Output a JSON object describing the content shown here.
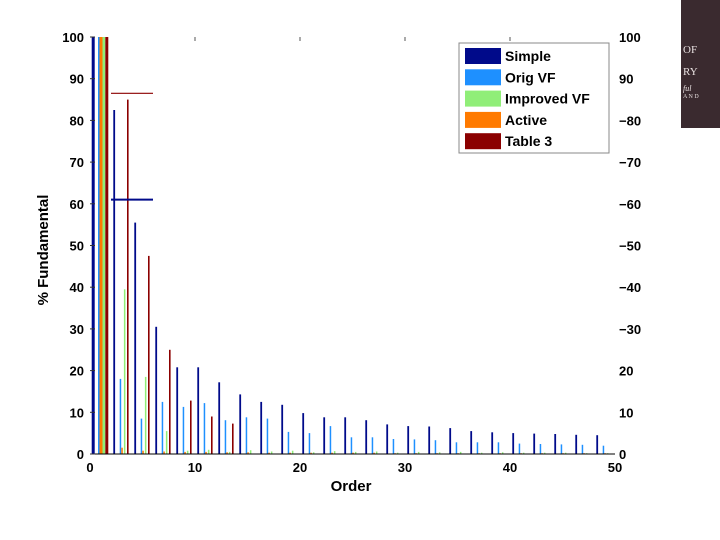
{
  "logo": {
    "line1": "OF",
    "line2": "RY",
    "line3": "ful",
    "line4": "A N D"
  },
  "colors": {
    "Simple": "#000a8a",
    "Orig VF": "#1e90ff",
    "Improved VF": "#90ee78",
    "Active": "#ff7a00",
    "Table 3": "#8b0000"
  },
  "chart_data": {
    "type": "bar",
    "title": "",
    "xlabel": "Order",
    "ylabel": "% Fundamental",
    "xlim": [
      0,
      50
    ],
    "ylim": [
      0,
      100
    ],
    "xticks": [
      0,
      10,
      20,
      30,
      40,
      50
    ],
    "yticks": [
      0,
      10,
      20,
      30,
      40,
      50,
      60,
      70,
      80,
      90,
      100
    ],
    "legend_position": "top-right",
    "series": [
      {
        "name": "Simple",
        "x": [
          1,
          3,
          5,
          7,
          9,
          11,
          13,
          15,
          17,
          19,
          21,
          23,
          25,
          27,
          29,
          31,
          33,
          35,
          37,
          39,
          41,
          43,
          45,
          47,
          49
        ],
        "values": [
          100,
          82.5,
          55.5,
          30.5,
          20.8,
          20.8,
          17.2,
          14.3,
          12.5,
          11.8,
          9.8,
          8.8,
          8.8,
          8.1,
          7.1,
          6.7,
          6.6,
          6.2,
          5.5,
          5.2,
          5.0,
          4.9,
          4.8,
          4.6,
          4.5
        ]
      },
      {
        "name": "Orig VF",
        "x": [
          1,
          3,
          5,
          7,
          9,
          11,
          13,
          15,
          17,
          19,
          21,
          23,
          25,
          27,
          29,
          31,
          33,
          35,
          37,
          39,
          41,
          43,
          45,
          47,
          49
        ],
        "values": [
          100,
          18,
          8.5,
          12.5,
          11.3,
          12.2,
          8.1,
          8.8,
          8.5,
          5.3,
          5.0,
          6.7,
          4.0,
          4.0,
          3.6,
          3.5,
          3.3,
          2.8,
          2.8,
          2.8,
          2.5,
          2.4,
          2.3,
          2.2,
          2.0
        ]
      },
      {
        "name": "Improved VF",
        "x": [
          1,
          3,
          5,
          7,
          9,
          11,
          13,
          15,
          17,
          19,
          21,
          23,
          25,
          27,
          29,
          31,
          33,
          35,
          37,
          39,
          41,
          43,
          45,
          47,
          49
        ],
        "values": [
          100,
          39.5,
          18.5,
          5.5,
          0.8,
          1.0,
          0.5,
          0.9,
          0.6,
          0.8,
          0.4,
          0.7,
          0.5,
          0.6,
          0.3,
          0.5,
          0.4,
          0.5,
          0.3,
          0.4,
          0.3,
          0.3,
          0.3,
          0.2,
          0.2
        ]
      },
      {
        "name": "Active",
        "x": [
          1,
          3,
          5,
          7,
          9,
          11,
          13,
          15,
          17,
          19,
          21,
          23,
          25,
          27,
          29,
          31,
          33,
          35,
          37,
          39,
          41,
          43,
          45,
          47,
          49
        ],
        "values": [
          100,
          1.5,
          0.8,
          0.6,
          0.5,
          0.5,
          0.4,
          0.4,
          0.3,
          0.3,
          0.3,
          0.3,
          0.3,
          0.3,
          0.2,
          0.2,
          0.2,
          0.2,
          0.2,
          0.2,
          0.2,
          0.2,
          0.2,
          0.2,
          0.2
        ]
      },
      {
        "name": "Table 3",
        "x": [
          1,
          3,
          5,
          7,
          9,
          11,
          13
        ],
        "values": [
          100,
          85,
          47.5,
          25,
          12.8,
          9.0,
          7.3
        ]
      }
    ],
    "reference_lines": [
      {
        "series": "Simple",
        "y": 61,
        "x_from": 2,
        "x_to": 6
      },
      {
        "series": "Table 3",
        "y": 86.5,
        "x_from": 2,
        "x_to": 6
      }
    ]
  }
}
